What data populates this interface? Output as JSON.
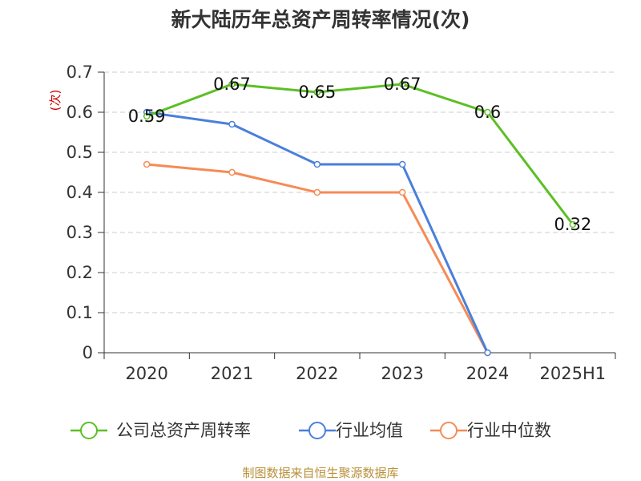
{
  "title": "新大陆历年总资产周转率情况(次)",
  "source": "制图数据来自恒生聚源数据库",
  "colors": {
    "company": "#5cbf25",
    "avg": "#4a7fdc",
    "median": "#f58b55",
    "grid": "#cccccc",
    "axis": "#333333"
  },
  "chart_data": {
    "type": "line",
    "title": "新大陆历年总资产周转率情况(次)",
    "xlabel": "",
    "ylabel": "(次)",
    "categories": [
      "2020",
      "2021",
      "2022",
      "2023",
      "2024",
      "2025H1"
    ],
    "ylim": [
      0,
      0.7
    ],
    "yticks": [
      "0",
      "0.1",
      "0.2",
      "0.3",
      "0.4",
      "0.5",
      "0.6",
      "0.7"
    ],
    "grid": true,
    "legend_position": "bottom",
    "series": [
      {
        "name": "公司总资产周转率",
        "key": "company",
        "values": [
          0.59,
          0.67,
          0.65,
          0.67,
          0.6,
          0.32
        ],
        "labels": [
          "0.59",
          "0.67",
          "0.65",
          "0.67",
          "0.6",
          "0.32"
        ]
      },
      {
        "name": "行业均值",
        "key": "avg",
        "values": [
          0.6,
          0.57,
          0.47,
          0.47,
          0.0,
          null
        ]
      },
      {
        "name": "行业中位数",
        "key": "median",
        "values": [
          0.47,
          0.45,
          0.4,
          0.4,
          0.0,
          null
        ]
      }
    ]
  }
}
